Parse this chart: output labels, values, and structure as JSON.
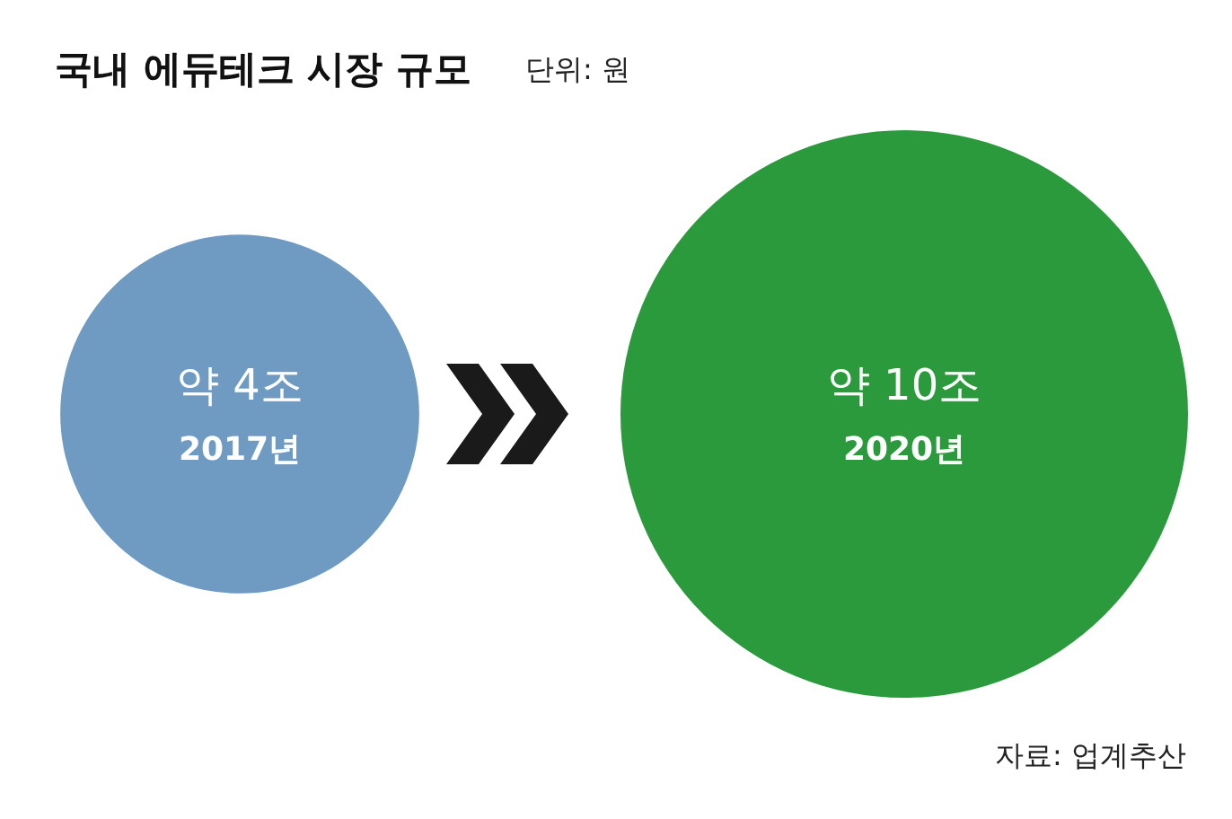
{
  "chart_data": {
    "type": "other",
    "title": "국내 에듀테크 시장 규모",
    "subtitle": "단위: 원",
    "categories": [
      "2017년",
      "2020년"
    ],
    "values": [
      4,
      10
    ],
    "value_labels": [
      "약 4조",
      "약 10조"
    ],
    "colors": [
      "#6f9bc3",
      "#2a9a3c"
    ],
    "annotations": [
      "자료: 업계추산"
    ]
  }
}
